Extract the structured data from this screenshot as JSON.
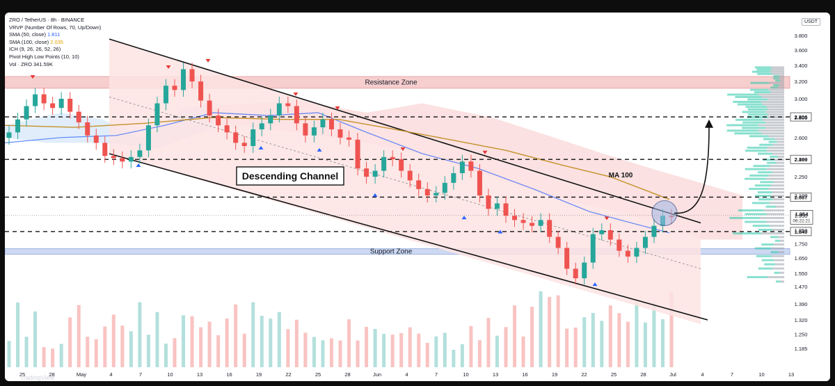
{
  "header": {
    "title": "ZRO / TetherUS · 8h · BINANCE",
    "indicators": [
      "VRVP (Number Of Rows, 70, Up/Down)",
      "SMA (50, close)",
      "SMA (100, close)",
      "ICH (9, 26, 26, 52, 26)",
      "Pivot High Low Points (10, 10)",
      "Vol · ZRO  341.59K"
    ],
    "sma50_value": "1.811",
    "sma100_value": "2.035",
    "currency": "USDT"
  },
  "footer": {
    "brand": "TradingView"
  },
  "colors": {
    "up": "#26a69a",
    "down": "#ef5350",
    "sma50": "#2962ff",
    "sma100": "#c4912a",
    "cloud": "#f8c9c9",
    "resistance": "#f5c6c6",
    "support": "#c5d3f0",
    "pivot_high": "#e53935",
    "pivot_low": "#2962ff"
  },
  "chart_data": {
    "type": "candlestick",
    "y_axis": {
      "ticks": [
        "3.800",
        "3.600",
        "3.400",
        "3.200",
        "3.000",
        "2.800",
        "2.600",
        "2.400",
        "2.250",
        "2.100",
        "1.950",
        "1.850",
        "1.750",
        "1.650",
        "1.550",
        "1.470",
        "1.390",
        "1.320",
        "1.250",
        "1.185"
      ],
      "tick_values": [
        3.8,
        3.6,
        3.4,
        3.2,
        3.0,
        2.8,
        2.6,
        2.4,
        2.25,
        2.1,
        1.95,
        1.85,
        1.75,
        1.65,
        1.55,
        1.47,
        1.39,
        1.32,
        1.25,
        1.185
      ],
      "scale": "log",
      "range": [
        1.16,
        4.0
      ]
    },
    "x_axis": {
      "ticks": [
        "25",
        "28",
        "May",
        "4",
        "7",
        "10",
        "13",
        "16",
        "19",
        "22",
        "25",
        "28",
        "Jun",
        "4",
        "7",
        "10",
        "13",
        "16",
        "19",
        "22",
        "25",
        "28",
        "Jul",
        "4",
        "7",
        "10",
        "13"
      ]
    },
    "price_levels": [
      {
        "label": "2.806",
        "value": 2.806
      },
      {
        "label": "2.399",
        "value": 2.399
      },
      {
        "label": "2.087",
        "value": 2.087
      },
      {
        "label": "1.840",
        "value": 1.84
      }
    ],
    "current_price": {
      "label": "1.954",
      "countdown": "06:22:21",
      "value": 1.954
    },
    "zones": [
      {
        "label": "Resistance Zone",
        "from": 3.12,
        "to": 3.26
      },
      {
        "label": "Support Zone",
        "from": 1.675,
        "to": 1.715
      }
    ],
    "annotations": [
      "Descending Channel",
      "MA 100"
    ],
    "channel": {
      "upper": [
        {
          "x": "2024-05-04",
          "y": 3.75
        },
        {
          "x": "2024-06-30",
          "y": 1.9
        }
      ],
      "lower": [
        {
          "x": "2024-05-04",
          "y": 2.45
        },
        {
          "x": "2024-07-01",
          "y": 1.32
        }
      ],
      "mid": [
        {
          "x": "2024-05-04",
          "y": 3.02
        },
        {
          "x": "2024-06-30",
          "y": 1.58
        }
      ]
    },
    "projection": {
      "from": 1.9,
      "to": 2.78
    },
    "series_close": [
      2.65,
      2.78,
      2.92,
      3.05,
      2.95,
      2.9,
      3.0,
      2.86,
      2.75,
      2.62,
      2.55,
      2.43,
      2.41,
      2.38,
      2.42,
      2.48,
      2.72,
      2.95,
      3.15,
      3.1,
      3.35,
      3.2,
      2.98,
      2.82,
      2.72,
      2.65,
      2.55,
      2.52,
      2.68,
      2.74,
      2.82,
      2.95,
      2.92,
      2.74,
      2.62,
      2.7,
      2.78,
      2.68,
      2.6,
      2.58,
      2.32,
      2.25,
      2.3,
      2.42,
      2.4,
      2.3,
      2.22,
      2.15,
      2.1,
      2.12,
      2.2,
      2.28,
      2.38,
      2.3,
      2.1,
      2.0,
      2.04,
      1.95,
      1.92,
      1.9,
      1.88,
      1.92,
      1.8,
      1.72,
      1.58,
      1.52,
      1.62,
      1.82,
      1.85,
      1.78,
      1.7,
      1.66,
      1.72,
      1.8,
      1.88,
      1.95,
      1.94
    ],
    "pivot_highs": [
      3.2,
      3.32,
      3.4,
      3.0,
      2.85,
      2.45,
      2.42,
      1.9
    ],
    "pivot_lows": [
      2.4,
      2.56,
      2.54,
      2.15,
      1.98,
      1.88,
      1.52
    ]
  }
}
